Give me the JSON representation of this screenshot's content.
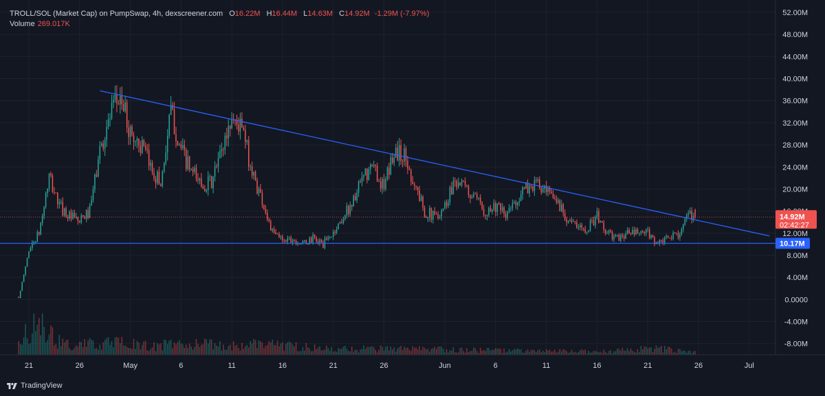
{
  "legend": {
    "symbol": "TROLL/SOL (Market Cap) on PumpSwap, 4h, dexscreener.com",
    "o_label": "O",
    "o_value": "16.22M",
    "h_label": "H",
    "h_value": "16.44M",
    "l_label": "L",
    "l_value": "14.63M",
    "c_label": "C",
    "c_value": "14.92M",
    "change": "-1.29M (-7.97%)",
    "volume_label": "Volume",
    "volume_value": "269.017K"
  },
  "brand": {
    "name": "TradingView",
    "icon": "tradingview-logo-icon"
  },
  "colors": {
    "background": "#131722",
    "up": "#26a69a",
    "down": "#ef5350",
    "trendline": "#2962ff",
    "support": "#2962ff",
    "text": "#d1d4dc",
    "grid": "#1e222d"
  },
  "chart_data": {
    "type": "candlestick",
    "interval": "4h",
    "y_unit": "market cap (USD)",
    "ylim": [
      -10000000,
      54000000
    ],
    "y_ticks": [
      "52.00M",
      "48.00M",
      "44.00M",
      "40.00M",
      "36.00M",
      "32.00M",
      "28.00M",
      "24.00M",
      "20.00M",
      "16.00M",
      "12.00M",
      "8.00M",
      "4.00M",
      "0.0000",
      "-4.00M",
      "-8.00M"
    ],
    "y_tick_values": [
      52,
      48,
      44,
      40,
      36,
      32,
      28,
      24,
      20,
      16,
      12,
      8,
      4,
      0,
      -4,
      -8
    ],
    "x_ticks": [
      {
        "label": "21",
        "date": "2025-04-21"
      },
      {
        "label": "26",
        "date": "2025-04-26"
      },
      {
        "label": "May",
        "date": "2025-05-01"
      },
      {
        "label": "6",
        "date": "2025-05-06"
      },
      {
        "label": "11",
        "date": "2025-05-11"
      },
      {
        "label": "16",
        "date": "2025-05-16"
      },
      {
        "label": "21",
        "date": "2025-05-21"
      },
      {
        "label": "26",
        "date": "2025-05-26"
      },
      {
        "label": "Jun",
        "date": "2025-06-01"
      },
      {
        "label": "6",
        "date": "2025-06-06"
      },
      {
        "label": "11",
        "date": "2025-06-11"
      },
      {
        "label": "16",
        "date": "2025-06-16"
      },
      {
        "label": "21",
        "date": "2025-06-21"
      },
      {
        "label": "26",
        "date": "2025-06-26"
      },
      {
        "label": "Jul",
        "date": "2025-07-01"
      }
    ],
    "price_path_dates": [
      "2025-04-20",
      "2025-04-21",
      "2025-04-22",
      "2025-04-23",
      "2025-04-24",
      "2025-04-25",
      "2025-04-26",
      "2025-04-27",
      "2025-04-28",
      "2025-04-29",
      "2025-04-30",
      "2025-05-01",
      "2025-05-02",
      "2025-05-03",
      "2025-05-04",
      "2025-05-05",
      "2025-05-06",
      "2025-05-07",
      "2025-05-08",
      "2025-05-09",
      "2025-05-10",
      "2025-05-11",
      "2025-05-12",
      "2025-05-13",
      "2025-05-14",
      "2025-05-15",
      "2025-05-16",
      "2025-05-17",
      "2025-05-18",
      "2025-05-19",
      "2025-05-20",
      "2025-05-21",
      "2025-05-22",
      "2025-05-23",
      "2025-05-24",
      "2025-05-25",
      "2025-05-26",
      "2025-05-27",
      "2025-05-28",
      "2025-05-29",
      "2025-05-30",
      "2025-05-31",
      "2025-06-01",
      "2025-06-02",
      "2025-06-03",
      "2025-06-04",
      "2025-06-05",
      "2025-06-06",
      "2025-06-07",
      "2025-06-08",
      "2025-06-09",
      "2025-06-10",
      "2025-06-11",
      "2025-06-12",
      "2025-06-13",
      "2025-06-14",
      "2025-06-15",
      "2025-06-16",
      "2025-06-17",
      "2025-06-18",
      "2025-06-19",
      "2025-06-20",
      "2025-06-21",
      "2025-06-22",
      "2025-06-23",
      "2025-06-24",
      "2025-06-25"
    ],
    "price_path_millions": [
      0,
      9,
      12,
      22,
      17,
      15,
      14,
      16,
      27,
      33,
      37,
      30,
      28,
      24,
      21,
      34,
      27,
      23,
      21,
      21,
      27,
      33,
      31,
      23,
      18,
      12,
      11,
      11,
      10,
      11,
      10,
      12,
      15,
      18,
      22,
      24,
      20,
      27,
      26,
      21,
      16,
      15,
      17,
      22,
      20,
      18,
      16,
      17,
      15,
      18,
      20,
      21,
      19,
      18,
      15,
      13,
      13,
      15,
      12,
      11,
      12,
      12,
      12,
      10,
      11,
      12,
      15
    ],
    "volume_path_dates": [
      "2025-04-20",
      "2025-04-21",
      "2025-04-22",
      "2025-04-23",
      "2025-04-24",
      "2025-04-25",
      "2025-04-30",
      "2025-05-03",
      "2025-05-05",
      "2025-05-12",
      "2025-05-14",
      "2025-05-20",
      "2025-05-26",
      "2025-06-01",
      "2025-06-11",
      "2025-06-17",
      "2025-06-22",
      "2025-06-25"
    ],
    "volume_path_millions": [
      1.8,
      3.2,
      5.2,
      2.6,
      1.8,
      1.3,
      1.6,
      1.1,
      1.5,
      1.2,
      1.6,
      0.8,
      0.8,
      0.7,
      0.5,
      0.45,
      0.9,
      0.35
    ],
    "annotations": {
      "last_price": {
        "label": "14.92M",
        "countdown": "02:42:27",
        "value": 14920000
      },
      "support_line": {
        "label": "10.17M",
        "value": 10170000
      },
      "descending_trendline": {
        "start_date": "2025-04-28",
        "start_value": 37800000,
        "end_date": "2025-07-03",
        "end_value": 11500000
      }
    },
    "grid": true,
    "legend_position": "top-left"
  }
}
